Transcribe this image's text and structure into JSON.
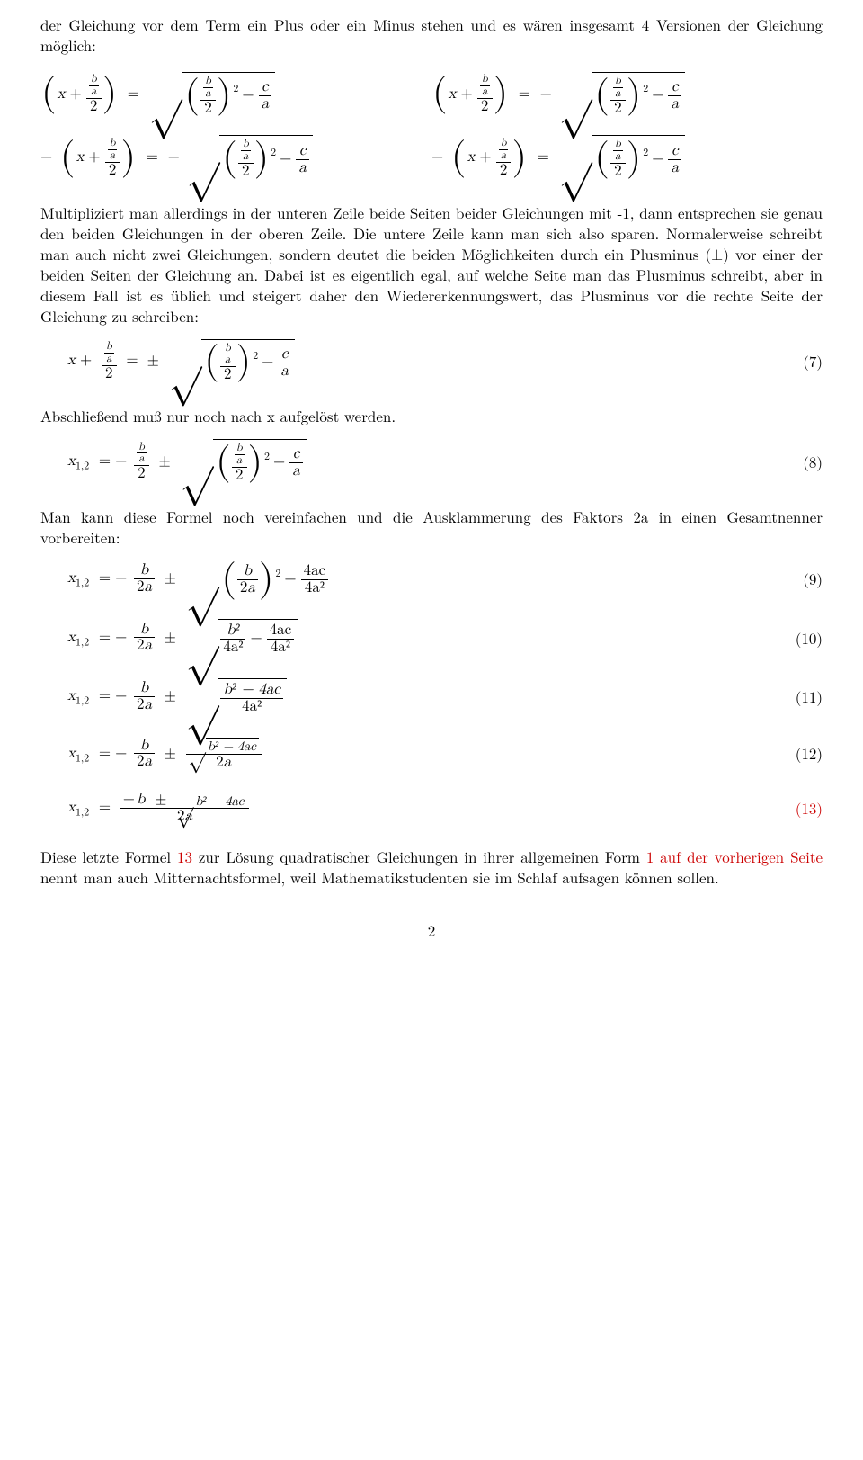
{
  "para1": "der Gleichung vor dem Term ein Plus oder ein Minus stehen und es wären insgesamt 4 Versionen der Gleichung möglich:",
  "para2": "Multipliziert man allerdings in der unteren Zeile beide Seiten beider Gleichungen mit -1, dann entsprechen sie genau den beiden Gleichungen in der oberen Zeile. Die untere Zeile kann man sich also sparen. Normalerweise schreibt man auch nicht zwei Gleichungen, sondern deutet die beiden Möglichkeiten durch ein Plusminus (±) vor einer der beiden Seiten der Gleichung an. Dabei ist es eigentlich egal, auf welche Seite man das Plusminus schreibt, aber in diesem Fall ist es üblich und steigert daher den Wiedererkennungswert, das Plusminus vor die rechte Seite der Gleichung zu schreiben:",
  "para3": "Abschließend muß nur noch nach x aufgelöst werden.",
  "para4": "Man kann diese Formel noch vereinfachen und die Ausklammerung des Faktors 2a in einen Gesamtnenner vorbereiten:",
  "para5a": "Diese letzte Formel ",
  "para5link": "13",
  "para5b": " zur Lösung quadratischer Gleichungen in ihrer allgemeinen Form ",
  "para5link2": "1 auf der vorherigen Seite",
  "para5c": " nennt man auch Mitternachtsformel, weil Mathematikstudenten sie im Schlaf aufsagen können sollen.",
  "tags": {
    "e7": "(7)",
    "e8": "(8)",
    "e9": "(9)",
    "e10": "(10)",
    "e11": "(11)",
    "e12": "(12)",
    "e13": "(13)"
  },
  "sym": {
    "x": "x",
    "a": "a",
    "b": "b",
    "c": "c",
    "plus": "+",
    "minus": "−",
    "pm": "±",
    "eq": "=",
    "two": "2",
    "four": "4",
    "b2": "b²",
    "a2": "a²",
    "x12": "x",
    "sub12": "1,2",
    "fac4ac": "4ac",
    "fa4a2": "4a²",
    "b2m4ac": "b² − 4ac"
  },
  "page": "2"
}
